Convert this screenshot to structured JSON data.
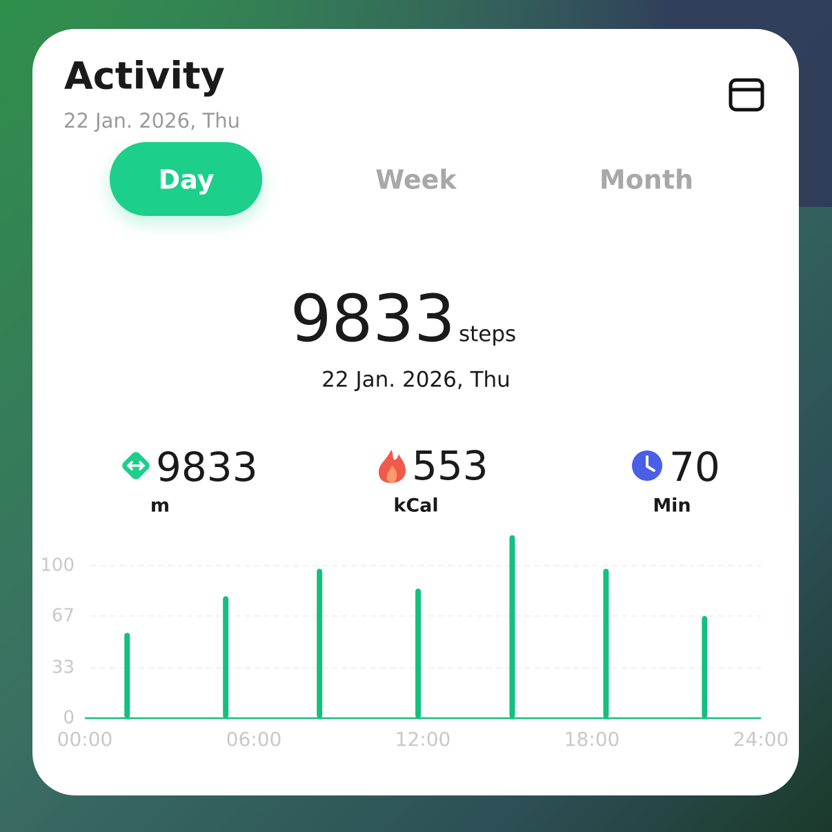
{
  "header": {
    "title": "Activity",
    "date": "22 Jan. 2026, Thu"
  },
  "tabs": [
    "Day",
    "Week",
    "Month"
  ],
  "summary": {
    "value": 9833,
    "unit": "steps",
    "date": "22 Jan. 2026, Thu"
  },
  "stats": [
    {
      "value": 9833,
      "unit": "m"
    },
    {
      "value": 553,
      "unit": "kCal"
    },
    {
      "value": 70,
      "unit": "Min"
    }
  ],
  "chart_data": {
    "type": "bar",
    "x": [
      1.5,
      5,
      8.33,
      11.83,
      15.17,
      18.5,
      22
    ],
    "values": [
      56,
      80,
      98,
      85,
      120,
      98,
      67
    ],
    "color": "#13c07f",
    "xlim": [
      0,
      24
    ],
    "xticks": [
      {
        "value": 0,
        "label": "00:00"
      },
      {
        "value": 6,
        "label": "06:00"
      },
      {
        "value": 12,
        "label": "12:00"
      },
      {
        "value": 18,
        "label": "18:00"
      },
      {
        "value": 24,
        "label": "24:00"
      }
    ],
    "ylim": [
      0,
      120
    ],
    "yticks": [
      0,
      33,
      67,
      100
    ],
    "grid": true
  }
}
